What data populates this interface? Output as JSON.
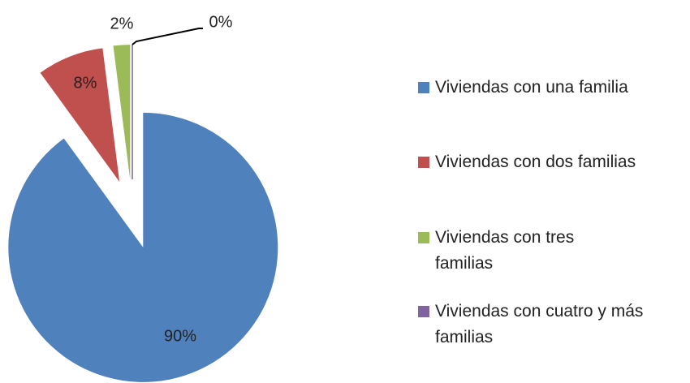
{
  "chart_data": {
    "type": "pie",
    "categories": [
      "Viviendas con una familia",
      "Viviendas con dos familias",
      "Viviendas con tres familias",
      "Viviendas con cuatro y más familias"
    ],
    "values": [
      90,
      8,
      2,
      0
    ],
    "value_labels": [
      "90%",
      "8%",
      "2%",
      "0%"
    ],
    "colors": [
      "#4f81bd",
      "#c0504d",
      "#9bbb59",
      "#8064a2"
    ],
    "legend": "right"
  }
}
